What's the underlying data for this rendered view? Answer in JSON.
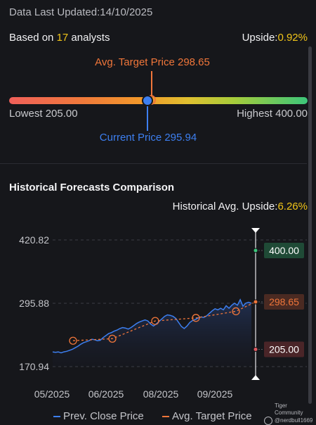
{
  "header": {
    "updated_label": "Data Last Updated:",
    "updated_date": "14/10/2025",
    "analysts_prefix": "Based on ",
    "analysts_count": "17",
    "analysts_suffix": " analysts",
    "upside_label": "Upside:",
    "upside_value": "0.92%"
  },
  "range": {
    "avg_target_label": "Avg. Target Price 298.65",
    "lowest_label": "Lowest 205.00",
    "highest_label": "Highest 400.00",
    "current_label": "Current Price 295.94"
  },
  "history": {
    "title": "Historical Forecasts Comparison",
    "upside_label": "Historical Avg. Upside:",
    "upside_value": "6.26%"
  },
  "chart_data": {
    "type": "line",
    "y_ticks": [
      "420.82",
      "295.88",
      "170.94"
    ],
    "x_ticks": [
      "05/2025",
      "06/2025",
      "08/2025",
      "09/2025"
    ],
    "ylim": [
      170.94,
      420.82
    ],
    "series": [
      {
        "name": "Prev. Close Price",
        "color": "#3d7ff0",
        "values": [
          200,
          199,
          200,
          198,
          200,
          201,
          203,
          205,
          208,
          211,
          215,
          218,
          220,
          222,
          225,
          224,
          222,
          223,
          228,
          232,
          236,
          238,
          241,
          243,
          246,
          248,
          247,
          245,
          248,
          252,
          256,
          259,
          261,
          263,
          261,
          255,
          251,
          255,
          260,
          265,
          270,
          273,
          272,
          270,
          266,
          258,
          250,
          246,
          251,
          258,
          262,
          264,
          267,
          269,
          268,
          271,
          276,
          281,
          285,
          283,
          286,
          283,
          291,
          286,
          292,
          296,
          292,
          303,
          290,
          296,
          298,
          296
        ]
      },
      {
        "name": "Avg. Target Price",
        "color": "#f0763a",
        "values": [
          222,
          226,
          261,
          267,
          280,
          298.65
        ]
      }
    ],
    "markers": {
      "high": "400.00",
      "target": "298.65",
      "low": "205.00"
    }
  },
  "legend": {
    "close_label": "Prev. Close Price",
    "target_label": "Avg. Target Price"
  },
  "watermark": {
    "line1": "Tiger Community",
    "line2": "@nerdbull1669"
  }
}
